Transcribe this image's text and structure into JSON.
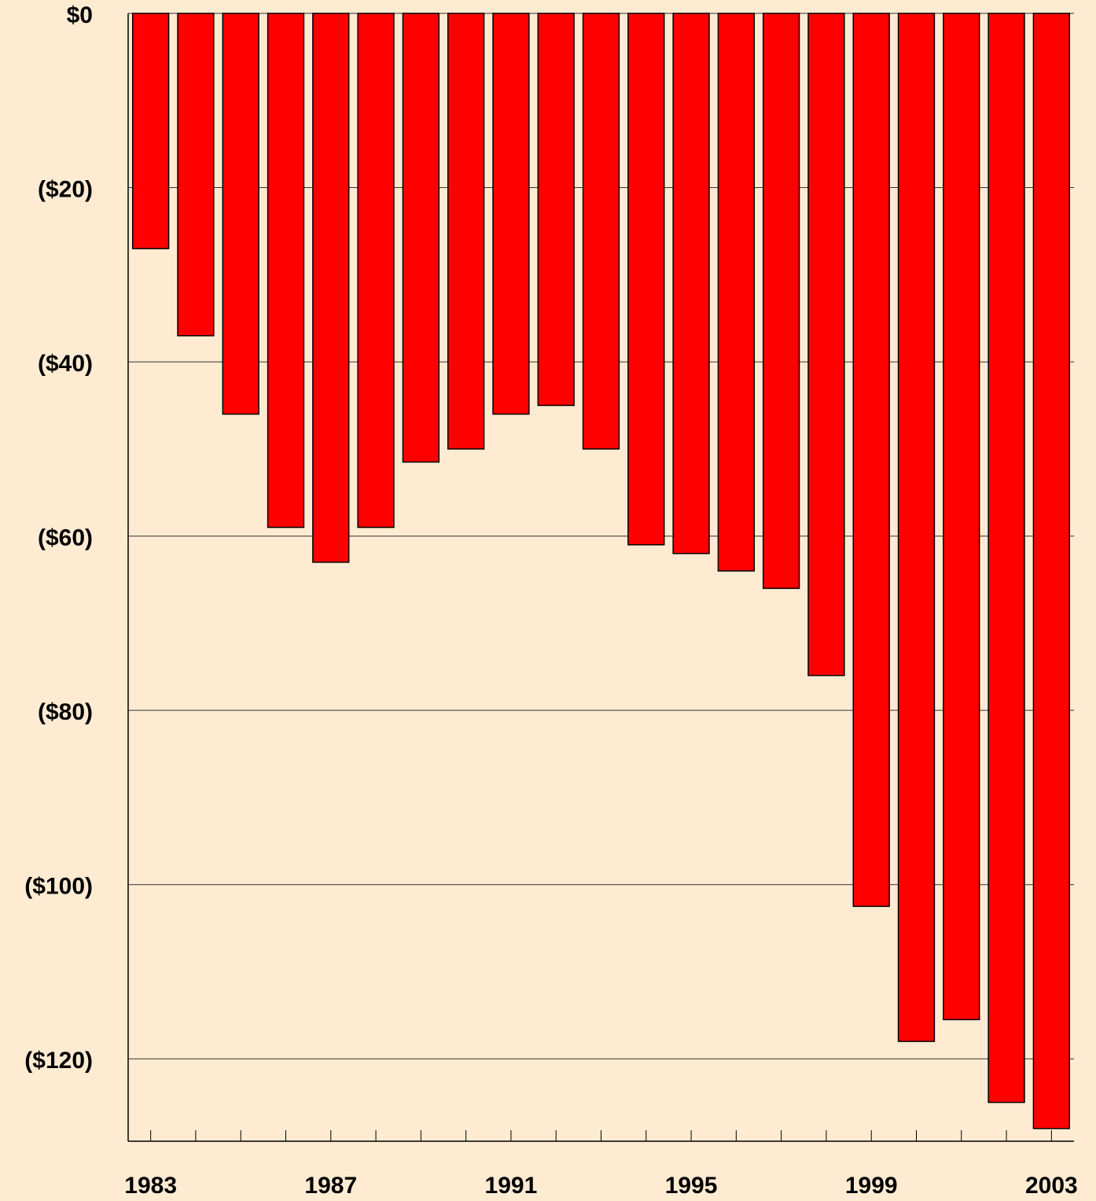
{
  "chart_data": {
    "type": "bar",
    "categories": [
      "1983",
      null,
      null,
      null,
      "1987",
      null,
      null,
      null,
      "1991",
      null,
      null,
      null,
      "1995",
      null,
      null,
      null,
      "1999",
      null,
      null,
      null,
      "2003"
    ],
    "values": [
      -27,
      -37,
      -46,
      -59,
      -63,
      -59,
      -51.5,
      -50,
      -46,
      -45,
      -50,
      -61,
      -62,
      -64,
      -66,
      -76,
      -102.5,
      -118,
      -115.5,
      -125,
      -128
    ],
    "color": "#ff0000",
    "ylim": [
      -130,
      0
    ],
    "yticks": [
      {
        "value": 0,
        "label": "$0"
      },
      {
        "value": -20,
        "label": "($20)"
      },
      {
        "value": -40,
        "label": "($40)"
      },
      {
        "value": -60,
        "label": "($60)"
      },
      {
        "value": -80,
        "label": "($80)"
      },
      {
        "value": -100,
        "label": "($100)"
      },
      {
        "value": -120,
        "label": "($120)"
      }
    ],
    "grid": true
  }
}
